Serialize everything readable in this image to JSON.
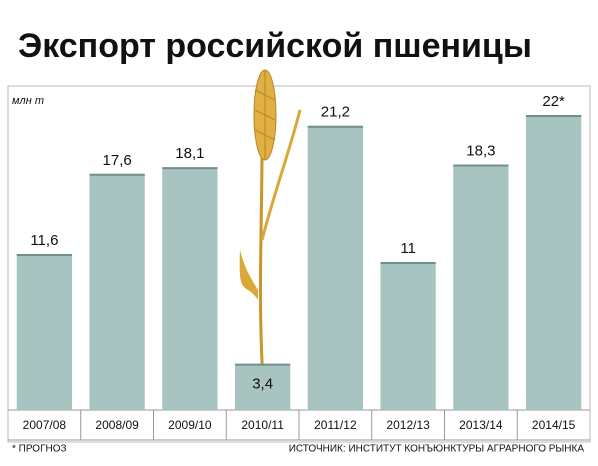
{
  "chart_data": {
    "type": "bar",
    "title": "Экспорт российской пшеницы",
    "unit_label": "млн т",
    "categories": [
      "2007/08",
      "2008/09",
      "2009/10",
      "2010/11",
      "2011/12",
      "2012/13",
      "2013/14",
      "2014/15"
    ],
    "values": [
      11.6,
      17.6,
      18.1,
      3.4,
      21.2,
      11,
      18.3,
      22
    ],
    "value_labels": [
      "11,6",
      "17,6",
      "18,1",
      "3,4",
      "21,2",
      "11",
      "18,3",
      "22*"
    ],
    "color": "#a8c4c1",
    "ylim": [
      0,
      22
    ],
    "footnote": "* ПРОГНОЗ",
    "source": "ИСТОЧНИК: ИНСТИТУТ КОНЪЮНКТУРЫ АГРАРНОГО РЫНКА"
  }
}
